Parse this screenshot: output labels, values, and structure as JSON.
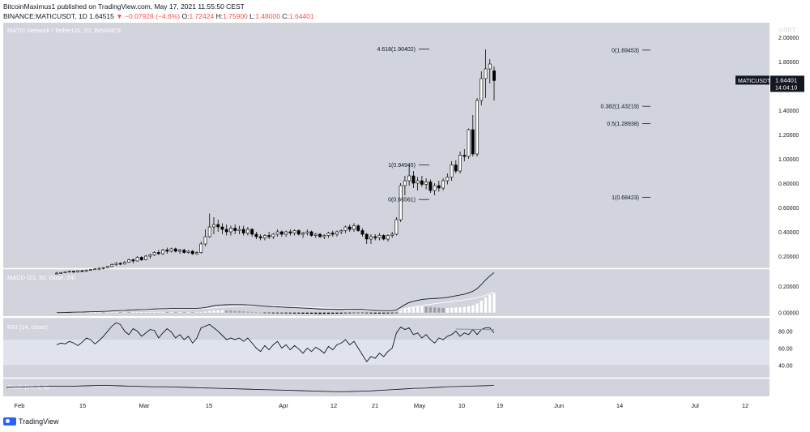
{
  "header": {
    "line1": "BitcoinMaximus1 published on TradingView.com, May 17, 2021 11:55:50 CEST",
    "symbol": "BINANCE:MATICUSDT, 1D",
    "last": "1.64515",
    "change": "−0.07928 (−4.6%)",
    "o_label": "O:",
    "o": "1.72424",
    "h_label": "H:",
    "h": "1.75900",
    "l_label": "L:",
    "l": "1.48000",
    "c_label": "C:",
    "c": "1.64401"
  },
  "footer": {
    "brand": "TradingView"
  },
  "colors": {
    "panel_bg": "#d1d4dc",
    "rsi_band": "#e0e3eb",
    "up_candle": "#ffffff",
    "down_candle": "#000000",
    "rsi_divergence": "#5b9bd5",
    "macd_hist_up": "#ffffff",
    "macd_hist_gray": "#9a9ea8",
    "macd_hist_down": "#000000"
  },
  "chart_data": {
    "type": "candlestick",
    "title": "MATIC Network / TetherUS, 1D, BINANCE",
    "currency": "USDT",
    "price_axis": {
      "ticks": [
        "2.00000",
        "1.80000",
        "1.60000",
        "1.40000",
        "1.20000",
        "1.00000",
        "0.80000",
        "0.60000",
        "0.40000",
        "0.20000"
      ],
      "ylim": [
        0.1,
        2.12
      ]
    },
    "x_ticks": [
      "Feb",
      "15",
      "Mar",
      "15",
      "Apr",
      "12",
      "21",
      "May",
      "10",
      "19",
      "Jun",
      "14",
      "Jul",
      "12"
    ],
    "last_price_label": {
      "symbol": "MATICUSDT",
      "value": "1.64401",
      "countdown": "14:04:10"
    },
    "fib_levels_left": [
      {
        "label": "4.618(1.90402)",
        "value": 1.90402
      },
      {
        "label": "1(0.94945)",
        "value": 0.94945
      },
      {
        "label": "0(0.66561)",
        "value": 0.66561
      }
    ],
    "fib_levels_right": [
      {
        "label": "0(1.89453)",
        "value": 1.89453
      },
      {
        "label": "0.382(1.43219)",
        "value": 1.43219
      },
      {
        "label": "0.5(1.28938)",
        "value": 1.28938
      },
      {
        "label": "1(0.68423)",
        "value": 0.68423
      }
    ],
    "candles": [
      [
        0.055,
        0.07,
        0.05,
        0.06
      ],
      [
        0.06,
        0.07,
        0.055,
        0.065
      ],
      [
        0.065,
        0.075,
        0.06,
        0.07
      ],
      [
        0.07,
        0.08,
        0.065,
        0.075
      ],
      [
        0.075,
        0.08,
        0.065,
        0.07
      ],
      [
        0.07,
        0.085,
        0.065,
        0.08
      ],
      [
        0.08,
        0.085,
        0.07,
        0.075
      ],
      [
        0.075,
        0.09,
        0.07,
        0.085
      ],
      [
        0.085,
        0.095,
        0.08,
        0.09
      ],
      [
        0.09,
        0.1,
        0.085,
        0.095
      ],
      [
        0.095,
        0.105,
        0.085,
        0.1
      ],
      [
        0.1,
        0.11,
        0.09,
        0.105
      ],
      [
        0.105,
        0.12,
        0.1,
        0.115
      ],
      [
        0.115,
        0.14,
        0.11,
        0.13
      ],
      [
        0.13,
        0.15,
        0.12,
        0.14
      ],
      [
        0.14,
        0.15,
        0.125,
        0.135
      ],
      [
        0.135,
        0.16,
        0.13,
        0.15
      ],
      [
        0.15,
        0.18,
        0.145,
        0.17
      ],
      [
        0.17,
        0.18,
        0.14,
        0.16
      ],
      [
        0.16,
        0.2,
        0.155,
        0.19
      ],
      [
        0.19,
        0.2,
        0.16,
        0.17
      ],
      [
        0.17,
        0.21,
        0.165,
        0.2
      ],
      [
        0.2,
        0.22,
        0.18,
        0.21
      ],
      [
        0.21,
        0.24,
        0.2,
        0.23
      ],
      [
        0.23,
        0.25,
        0.21,
        0.22
      ],
      [
        0.22,
        0.26,
        0.21,
        0.25
      ],
      [
        0.25,
        0.27,
        0.22,
        0.24
      ],
      [
        0.24,
        0.27,
        0.23,
        0.26
      ],
      [
        0.26,
        0.27,
        0.23,
        0.24
      ],
      [
        0.24,
        0.26,
        0.22,
        0.25
      ],
      [
        0.25,
        0.26,
        0.22,
        0.23
      ],
      [
        0.23,
        0.25,
        0.22,
        0.24
      ],
      [
        0.24,
        0.25,
        0.21,
        0.22
      ],
      [
        0.22,
        0.24,
        0.21,
        0.23
      ],
      [
        0.23,
        0.32,
        0.22,
        0.3
      ],
      [
        0.3,
        0.42,
        0.28,
        0.36
      ],
      [
        0.36,
        0.55,
        0.35,
        0.44
      ],
      [
        0.44,
        0.52,
        0.38,
        0.46
      ],
      [
        0.46,
        0.5,
        0.4,
        0.44
      ],
      [
        0.44,
        0.47,
        0.38,
        0.42
      ],
      [
        0.42,
        0.46,
        0.37,
        0.4
      ],
      [
        0.4,
        0.45,
        0.37,
        0.43
      ],
      [
        0.43,
        0.46,
        0.38,
        0.41
      ],
      [
        0.41,
        0.45,
        0.38,
        0.42
      ],
      [
        0.42,
        0.45,
        0.37,
        0.39
      ],
      [
        0.39,
        0.44,
        0.37,
        0.42
      ],
      [
        0.42,
        0.43,
        0.36,
        0.38
      ],
      [
        0.38,
        0.4,
        0.34,
        0.36
      ],
      [
        0.36,
        0.38,
        0.33,
        0.35
      ],
      [
        0.35,
        0.38,
        0.33,
        0.37
      ],
      [
        0.37,
        0.4,
        0.34,
        0.36
      ],
      [
        0.36,
        0.39,
        0.34,
        0.38
      ],
      [
        0.38,
        0.42,
        0.36,
        0.4
      ],
      [
        0.4,
        0.41,
        0.36,
        0.38
      ],
      [
        0.38,
        0.41,
        0.36,
        0.4
      ],
      [
        0.4,
        0.42,
        0.37,
        0.39
      ],
      [
        0.39,
        0.42,
        0.37,
        0.41
      ],
      [
        0.41,
        0.42,
        0.37,
        0.38
      ],
      [
        0.38,
        0.4,
        0.35,
        0.39
      ],
      [
        0.39,
        0.42,
        0.37,
        0.4
      ],
      [
        0.4,
        0.41,
        0.36,
        0.37
      ],
      [
        0.37,
        0.39,
        0.35,
        0.38
      ],
      [
        0.38,
        0.39,
        0.35,
        0.36
      ],
      [
        0.36,
        0.38,
        0.34,
        0.37
      ],
      [
        0.37,
        0.4,
        0.35,
        0.39
      ],
      [
        0.39,
        0.41,
        0.36,
        0.38
      ],
      [
        0.38,
        0.41,
        0.36,
        0.4
      ],
      [
        0.4,
        0.42,
        0.38,
        0.41
      ],
      [
        0.41,
        0.45,
        0.39,
        0.44
      ],
      [
        0.44,
        0.46,
        0.4,
        0.42
      ],
      [
        0.42,
        0.47,
        0.4,
        0.45
      ],
      [
        0.45,
        0.46,
        0.4,
        0.41
      ],
      [
        0.41,
        0.43,
        0.36,
        0.38
      ],
      [
        0.38,
        0.39,
        0.3,
        0.34
      ],
      [
        0.34,
        0.38,
        0.3,
        0.36
      ],
      [
        0.36,
        0.38,
        0.33,
        0.35
      ],
      [
        0.35,
        0.39,
        0.33,
        0.37
      ],
      [
        0.37,
        0.38,
        0.33,
        0.34
      ],
      [
        0.34,
        0.38,
        0.32,
        0.37
      ],
      [
        0.37,
        0.4,
        0.35,
        0.38
      ],
      [
        0.38,
        0.52,
        0.37,
        0.5
      ],
      [
        0.5,
        0.8,
        0.48,
        0.78
      ],
      [
        0.78,
        0.86,
        0.7,
        0.82
      ],
      [
        0.82,
        0.95,
        0.78,
        0.86
      ],
      [
        0.86,
        0.9,
        0.76,
        0.8
      ],
      [
        0.8,
        0.85,
        0.74,
        0.82
      ],
      [
        0.82,
        0.86,
        0.77,
        0.79
      ],
      [
        0.79,
        0.84,
        0.75,
        0.81
      ],
      [
        0.81,
        0.83,
        0.72,
        0.74
      ],
      [
        0.74,
        0.8,
        0.7,
        0.78
      ],
      [
        0.78,
        0.82,
        0.73,
        0.76
      ],
      [
        0.76,
        0.84,
        0.74,
        0.82
      ],
      [
        0.82,
        0.88,
        0.79,
        0.85
      ],
      [
        0.85,
        0.98,
        0.82,
        0.95
      ],
      [
        0.95,
        0.99,
        0.88,
        0.9
      ],
      [
        0.9,
        1.06,
        0.88,
        1.03
      ],
      [
        1.03,
        1.08,
        0.98,
        1.02
      ],
      [
        1.02,
        1.25,
        1.0,
        1.24
      ],
      [
        1.24,
        1.36,
        1.02,
        1.04
      ],
      [
        1.04,
        1.5,
        1.02,
        1.48
      ],
      [
        1.48,
        1.72,
        1.44,
        1.66
      ],
      [
        1.66,
        1.9,
        1.5,
        1.74
      ],
      [
        1.74,
        1.82,
        1.62,
        1.78
      ],
      [
        1.72424,
        1.759,
        1.48,
        1.64401
      ]
    ],
    "macd": {
      "label": "MACD (21, 50, close, 24)",
      "ticks": [
        "0.20000",
        "0.00000"
      ],
      "ylim": [
        -0.02,
        0.32
      ],
      "line": [
        0.0,
        0.0,
        0.001,
        0.002,
        0.003,
        0.004,
        0.004,
        0.005,
        0.006,
        0.007,
        0.008,
        0.009,
        0.01,
        0.012,
        0.014,
        0.015,
        0.016,
        0.018,
        0.02,
        0.021,
        0.022,
        0.023,
        0.025,
        0.027,
        0.028,
        0.029,
        0.03,
        0.031,
        0.031,
        0.032,
        0.032,
        0.032,
        0.032,
        0.032,
        0.034,
        0.038,
        0.045,
        0.052,
        0.056,
        0.058,
        0.059,
        0.06,
        0.06,
        0.06,
        0.059,
        0.058,
        0.056,
        0.053,
        0.05,
        0.048,
        0.046,
        0.044,
        0.043,
        0.042,
        0.04,
        0.039,
        0.037,
        0.036,
        0.034,
        0.033,
        0.031,
        0.029,
        0.027,
        0.026,
        0.025,
        0.025,
        0.024,
        0.024,
        0.025,
        0.025,
        0.026,
        0.026,
        0.025,
        0.022,
        0.02,
        0.018,
        0.017,
        0.016,
        0.016,
        0.016,
        0.02,
        0.04,
        0.06,
        0.075,
        0.085,
        0.092,
        0.098,
        0.102,
        0.104,
        0.106,
        0.108,
        0.11,
        0.114,
        0.12,
        0.126,
        0.132,
        0.138,
        0.148,
        0.16,
        0.18,
        0.21,
        0.245,
        0.275,
        0.3
      ],
      "signal": [
        0.0,
        0.0,
        0.0,
        0.001,
        0.002,
        0.003,
        0.003,
        0.004,
        0.005,
        0.006,
        0.007,
        0.008,
        0.009,
        0.01,
        0.011,
        0.012,
        0.013,
        0.015,
        0.016,
        0.017,
        0.018,
        0.019,
        0.021,
        0.022,
        0.023,
        0.024,
        0.025,
        0.026,
        0.027,
        0.027,
        0.028,
        0.028,
        0.029,
        0.029,
        0.03,
        0.031,
        0.033,
        0.036,
        0.039,
        0.041,
        0.043,
        0.045,
        0.047,
        0.048,
        0.049,
        0.05,
        0.05,
        0.05,
        0.05,
        0.05,
        0.049,
        0.049,
        0.048,
        0.047,
        0.046,
        0.045,
        0.044,
        0.043,
        0.042,
        0.041,
        0.039,
        0.038,
        0.037,
        0.035,
        0.034,
        0.033,
        0.032,
        0.031,
        0.03,
        0.03,
        0.029,
        0.029,
        0.028,
        0.027,
        0.026,
        0.025,
        0.024,
        0.023,
        0.022,
        0.021,
        0.022,
        0.025,
        0.03,
        0.035,
        0.041,
        0.047,
        0.052,
        0.058,
        0.062,
        0.067,
        0.071,
        0.075,
        0.079,
        0.083,
        0.087,
        0.091,
        0.095,
        0.1,
        0.105,
        0.112,
        0.12,
        0.13,
        0.142,
        0.155
      ]
    },
    "rsi": {
      "label": "RSI (14, close)",
      "ticks": [
        "80.00",
        "60.00",
        "40.00"
      ],
      "ylim": [
        26,
        95
      ],
      "band": [
        40,
        70
      ],
      "values": [
        64,
        66,
        65,
        68,
        66,
        63,
        67,
        72,
        70,
        65,
        69,
        74,
        80,
        86,
        90,
        88,
        80,
        76,
        83,
        80,
        74,
        78,
        82,
        81,
        72,
        78,
        83,
        79,
        72,
        76,
        70,
        74,
        66,
        72,
        84,
        86,
        88,
        84,
        80,
        75,
        70,
        72,
        70,
        72,
        68,
        72,
        66,
        60,
        56,
        63,
        58,
        64,
        68,
        60,
        64,
        58,
        63,
        59,
        54,
        60,
        56,
        61,
        58,
        54,
        62,
        58,
        64,
        66,
        70,
        64,
        68,
        60,
        52,
        44,
        50,
        48,
        54,
        50,
        56,
        60,
        78,
        85,
        82,
        84,
        76,
        78,
        72,
        76,
        70,
        66,
        72,
        70,
        74,
        76,
        80,
        74,
        78,
        76,
        82,
        76,
        82,
        84,
        84,
        78
      ],
      "divergence": [
        [
          94,
          82.5
        ],
        [
          103,
          81.8
        ]
      ]
    },
    "stoch": {
      "label": "Stoch (14, 3, 3)",
      "k": [
        50,
        52,
        54,
        56,
        58,
        58,
        58,
        60,
        62,
        62,
        60,
        58,
        56,
        54,
        54,
        52,
        50,
        48,
        46,
        44,
        42,
        40,
        38,
        36,
        34,
        32,
        30,
        28,
        26,
        24,
        24,
        26,
        28,
        32,
        36,
        40,
        44,
        46,
        50,
        54,
        56,
        58,
        60,
        62
      ],
      "d": [
        48,
        50,
        52,
        54,
        56,
        57,
        58,
        59,
        60,
        61,
        60,
        59,
        57,
        56,
        55,
        53,
        51,
        49,
        47,
        45,
        43,
        41,
        39,
        37,
        35,
        33,
        31,
        29,
        27,
        26,
        25,
        26,
        28,
        31,
        34,
        38,
        41,
        44,
        48,
        51,
        54,
        56,
        58,
        60
      ]
    }
  }
}
